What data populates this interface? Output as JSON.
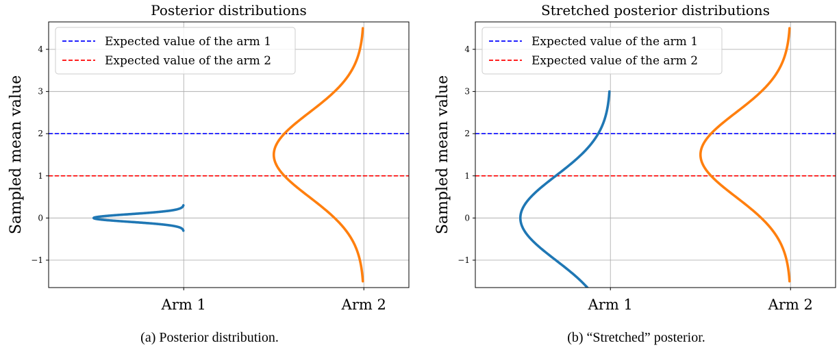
{
  "chart_data": [
    {
      "type": "line",
      "title": "Posterior distributions",
      "ylabel": "Sampled mean value",
      "xlabel": "",
      "categories": [
        "Arm 1",
        "Arm 2"
      ],
      "ylim": [
        -1.65,
        4.65
      ],
      "yticks": [
        -1,
        0,
        1,
        2,
        3,
        4
      ],
      "ytick_labels": [
        "−1",
        "0",
        "1",
        "2",
        "3",
        "4"
      ],
      "grid": true,
      "legend_position": "top-left",
      "hlines": [
        {
          "name": "Expected value of the arm 1",
          "y": 2,
          "color": "#0000ff",
          "style": "dashed"
        },
        {
          "name": "Expected value of the arm 2",
          "y": 1,
          "color": "#ff0000",
          "style": "dashed"
        }
      ],
      "series": [
        {
          "category": "Arm 1",
          "color": "#1f77b4",
          "mean": 0,
          "sd": 0.09,
          "y_range": [
            -0.3,
            0.3
          ],
          "peak_width": 0.5
        },
        {
          "category": "Arm 2",
          "color": "#ff7f0e",
          "mean": 1.5,
          "sd": 1.0,
          "y_range": [
            -1.5,
            4.5
          ],
          "peak_width": 0.5
        }
      ],
      "caption": "(a) Posterior distribution."
    },
    {
      "type": "line",
      "title": "Stretched posterior distributions",
      "ylabel": "Sampled mean value",
      "xlabel": "",
      "categories": [
        "Arm 1",
        "Arm 2"
      ],
      "ylim": [
        -1.65,
        4.65
      ],
      "yticks": [
        -1,
        0,
        1,
        2,
        3,
        4
      ],
      "ytick_labels": [
        "−1",
        "0",
        "1",
        "2",
        "3",
        "4"
      ],
      "grid": true,
      "legend_position": "top-left",
      "hlines": [
        {
          "name": "Expected value of the arm 1",
          "y": 2,
          "color": "#0000ff",
          "style": "dashed"
        },
        {
          "name": "Expected value of the arm 2",
          "y": 1,
          "color": "#ff0000",
          "style": "dashed"
        }
      ],
      "series": [
        {
          "category": "Arm 1",
          "color": "#1f77b4",
          "mean": 0,
          "sd": 1.0,
          "y_range": [
            -3,
            3
          ],
          "peak_width": 0.5
        },
        {
          "category": "Arm 2",
          "color": "#ff7f0e",
          "mean": 1.5,
          "sd": 1.0,
          "y_range": [
            -1.5,
            4.5
          ],
          "peak_width": 0.5
        }
      ],
      "caption": "(b) “Stretched” posterior."
    }
  ]
}
